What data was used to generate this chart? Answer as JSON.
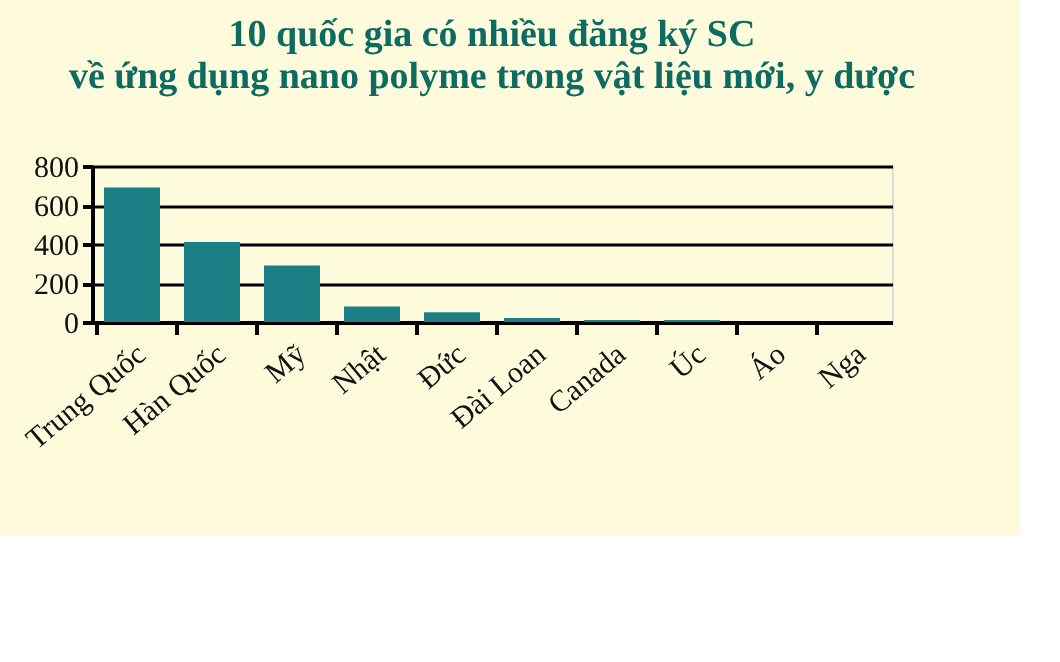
{
  "chart_data": {
    "type": "bar",
    "title": [
      "10 quốc gia có nhiều đăng ký SC",
      "về  ứng dụng nano polyme trong vật liệu mới, y dược"
    ],
    "categories": [
      "Trung Quốc",
      "Hàn Quốc",
      "Mỹ",
      "Nhật",
      "Đức",
      "Đài Loan",
      "Canada",
      "Úc",
      "Áo",
      "Nga"
    ],
    "values": [
      690,
      410,
      290,
      80,
      50,
      20,
      10,
      10,
      0,
      0
    ],
    "color": "#1b7f86",
    "ylim": [
      0,
      800
    ],
    "yticks": [
      0,
      200,
      400,
      600,
      800
    ],
    "grid": "y"
  }
}
